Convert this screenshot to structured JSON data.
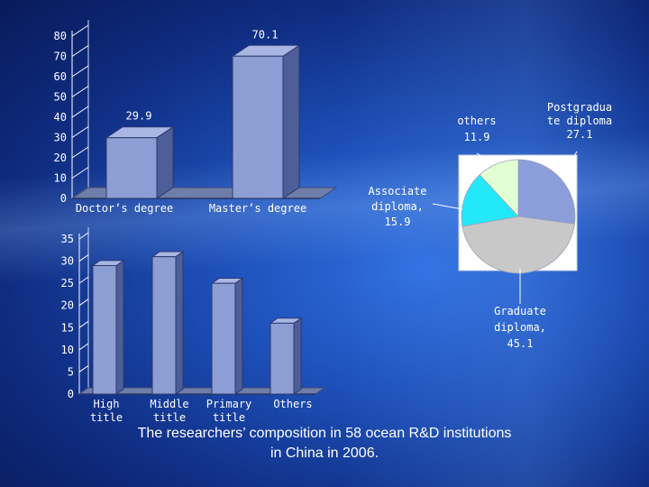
{
  "caption": {
    "line1": "The researchers’ composition in 58 ocean R&D institutions",
    "line2": "in China in 2006."
  },
  "colors": {
    "bar_front": "#8c9ed4",
    "bar_side": "#4d5e99",
    "bar_top": "#a8b6e4",
    "floor": "#6f7ea9",
    "label": "#ffffff"
  },
  "chart_data": [
    {
      "type": "bar",
      "categories": [
        "Doctor’s degree",
        "Master’s degree"
      ],
      "values": [
        29.9,
        70.1
      ],
      "value_labels": [
        "29.9",
        "70.1"
      ],
      "ylim": [
        0,
        80
      ],
      "yticks": [
        0,
        10,
        20,
        30,
        40,
        50,
        60,
        70,
        80
      ],
      "grid": false
    },
    {
      "type": "bar",
      "categories": [
        "High title",
        "Middle title",
        "Primary title",
        "Others"
      ],
      "values": [
        29,
        31,
        25,
        16
      ],
      "ylim": [
        0,
        35
      ],
      "yticks": [
        0,
        5,
        10,
        15,
        20,
        25,
        30,
        35
      ],
      "grid": false
    },
    {
      "type": "pie",
      "categories": [
        "Postgraduate diploma",
        "Graduate diploma",
        "Associate diploma",
        "others"
      ],
      "values": [
        27.1,
        45.1,
        15.9,
        11.9
      ],
      "labels": [
        [
          "Postgradua",
          "te diploma",
          "27.1"
        ],
        [
          "Graduate",
          "diploma,",
          "45.1"
        ],
        [
          "Associate",
          "diploma,",
          "15.9"
        ],
        [
          "others",
          "11.9"
        ]
      ],
      "colors": [
        "#8b9ed9",
        "#c8c8c8",
        "#22e8fa",
        "#e2ffd4"
      ]
    }
  ]
}
